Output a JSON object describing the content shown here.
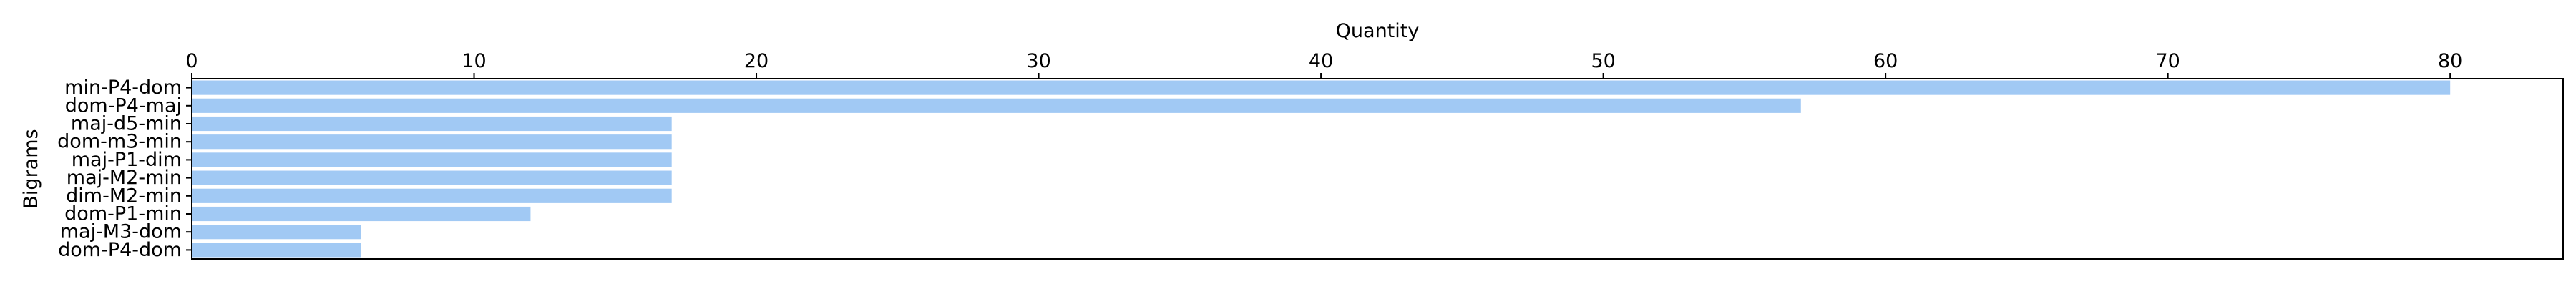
{
  "chart_data": {
    "type": "bar",
    "orientation": "horizontal",
    "title": "",
    "xlabel": "Quantity",
    "ylabel": "Bigrams",
    "xaxis_position": "top",
    "xlim": [
      0,
      84
    ],
    "xticks": [
      0,
      10,
      20,
      30,
      40,
      50,
      60,
      70,
      80
    ],
    "grid": false,
    "legend": "none",
    "bar_color": "#a1c9f4",
    "categories": [
      "min-P4-dom",
      "dom-P4-maj",
      "maj-d5-min",
      "dom-m3-min",
      "maj-P1-dim",
      "maj-M2-min",
      "dim-M2-min",
      "dom-P1-min",
      "maj-M3-dom",
      "dom-P4-dom"
    ],
    "values": [
      80,
      57,
      17,
      17,
      17,
      17,
      17,
      12,
      6,
      6
    ]
  }
}
